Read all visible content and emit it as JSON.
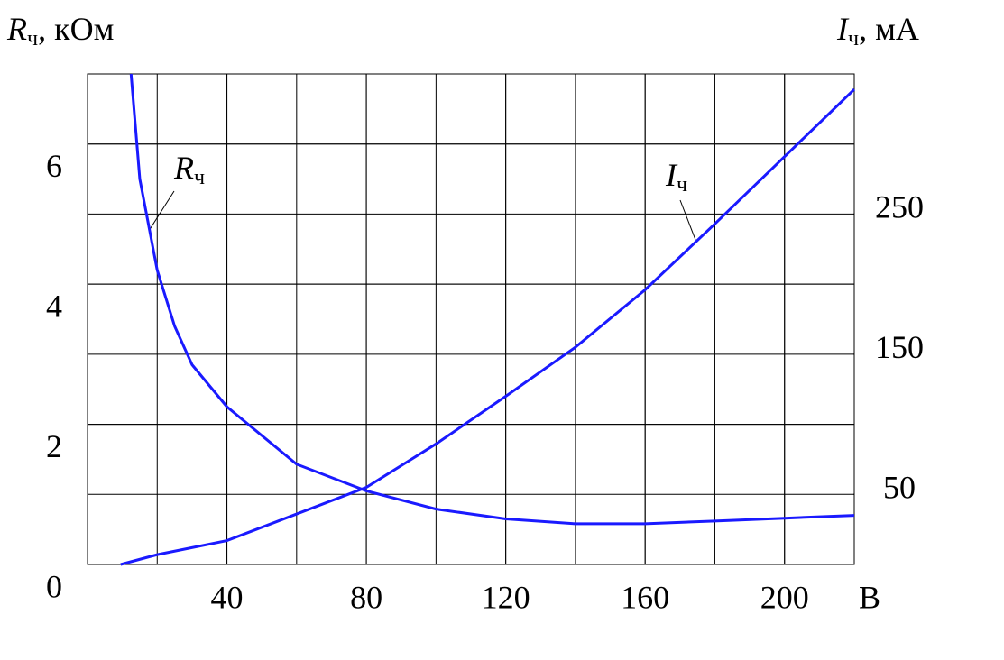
{
  "chart_data": {
    "type": "line",
    "y_label": {
      "symbol": "R",
      "subscript": "ч",
      "unit": ", кОм"
    },
    "y2_label": {
      "symbol": "I",
      "subscript": "ч",
      "unit": ", мА"
    },
    "x_label": "В",
    "xlim": [
      0,
      220
    ],
    "xticks": [
      40,
      80,
      120,
      160,
      200
    ],
    "ylim": [
      0,
      7
    ],
    "yticks": [
      0,
      2,
      4,
      6
    ],
    "y2lim": [
      0,
      350
    ],
    "y2ticks": [
      50,
      150,
      250
    ],
    "grid": true,
    "series": [
      {
        "name": {
          "symbol": "R",
          "subscript": "ч"
        },
        "color": "#1a1aff",
        "axis": "y",
        "x": [
          12.5,
          15,
          20,
          25,
          30,
          40,
          60,
          80,
          100,
          120,
          140,
          160,
          180,
          200,
          220
        ],
        "values": [
          7.0,
          5.5,
          4.2,
          3.4,
          2.85,
          2.25,
          1.43,
          1.05,
          0.79,
          0.65,
          0.58,
          0.58,
          0.62,
          0.66,
          0.7
        ]
      },
      {
        "name": {
          "symbol": "I",
          "subscript": "ч"
        },
        "color": "#1a1aff",
        "axis": "y2",
        "x": [
          9.5,
          20,
          40,
          60,
          80,
          100,
          120,
          140,
          160,
          180,
          200,
          220
        ],
        "values": [
          0,
          7,
          17,
          36,
          55,
          86,
          120,
          155,
          196,
          243,
          291,
          339
        ]
      }
    ]
  }
}
